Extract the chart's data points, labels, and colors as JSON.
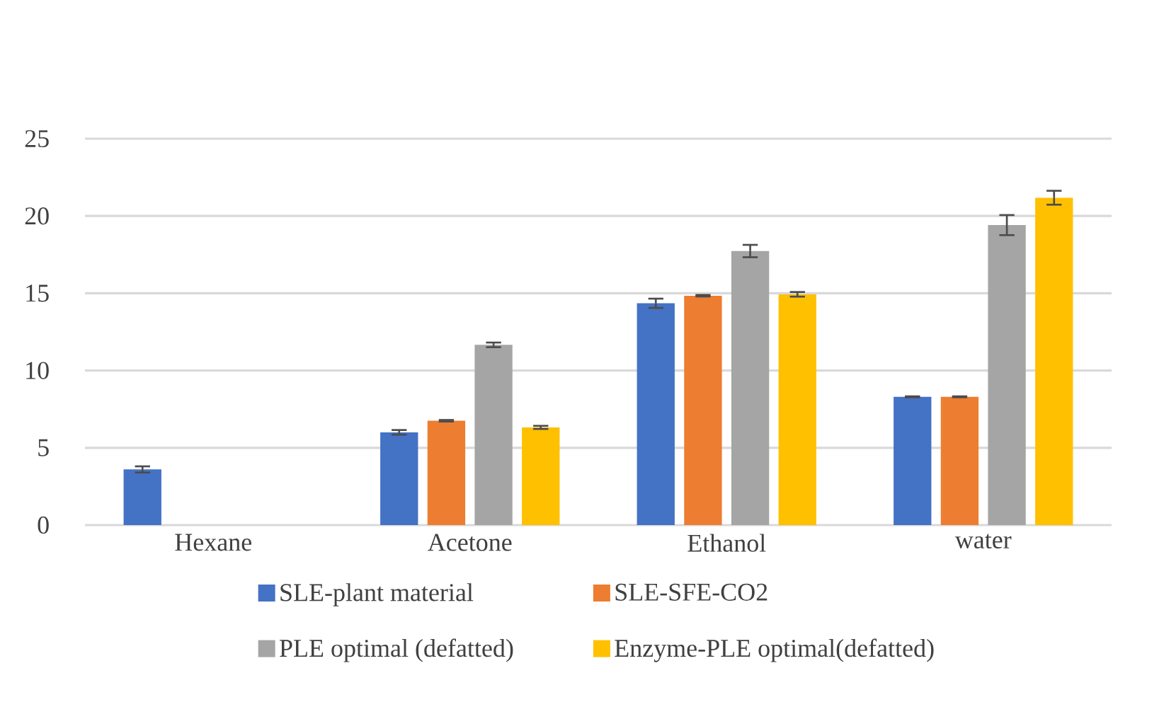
{
  "chart_data": {
    "type": "bar",
    "categories": [
      "Hexane",
      "Acetone",
      "Ethanol",
      "water"
    ],
    "series": [
      {
        "name": "SLE-plant material",
        "color": "#4472c4",
        "values": [
          3.6,
          6.0,
          14.35,
          8.3
        ],
        "errors": [
          0.2,
          0.15,
          0.3,
          0.03
        ]
      },
      {
        "name": "SLE-SFE-CO2",
        "color": "#ed7d31",
        "values": [
          null,
          6.75,
          14.84,
          8.3
        ],
        "errors": [
          null,
          0.05,
          0.05,
          0.03
        ]
      },
      {
        "name": "PLE optimal (defatted)",
        "color": "#a5a5a5",
        "values": [
          null,
          11.66,
          17.73,
          19.41
        ],
        "errors": [
          null,
          0.15,
          0.4,
          0.65
        ]
      },
      {
        "name": "Enzyme-PLE optimal(defatted)",
        "color": "#ffc000",
        "values": [
          null,
          6.32,
          14.93,
          21.18
        ],
        "errors": [
          null,
          0.1,
          0.15,
          0.45
        ]
      }
    ],
    "ylim": [
      0,
      25
    ],
    "yticks": [
      0,
      5,
      10,
      15,
      20,
      25
    ],
    "grid": "y",
    "legend": "bottom"
  }
}
